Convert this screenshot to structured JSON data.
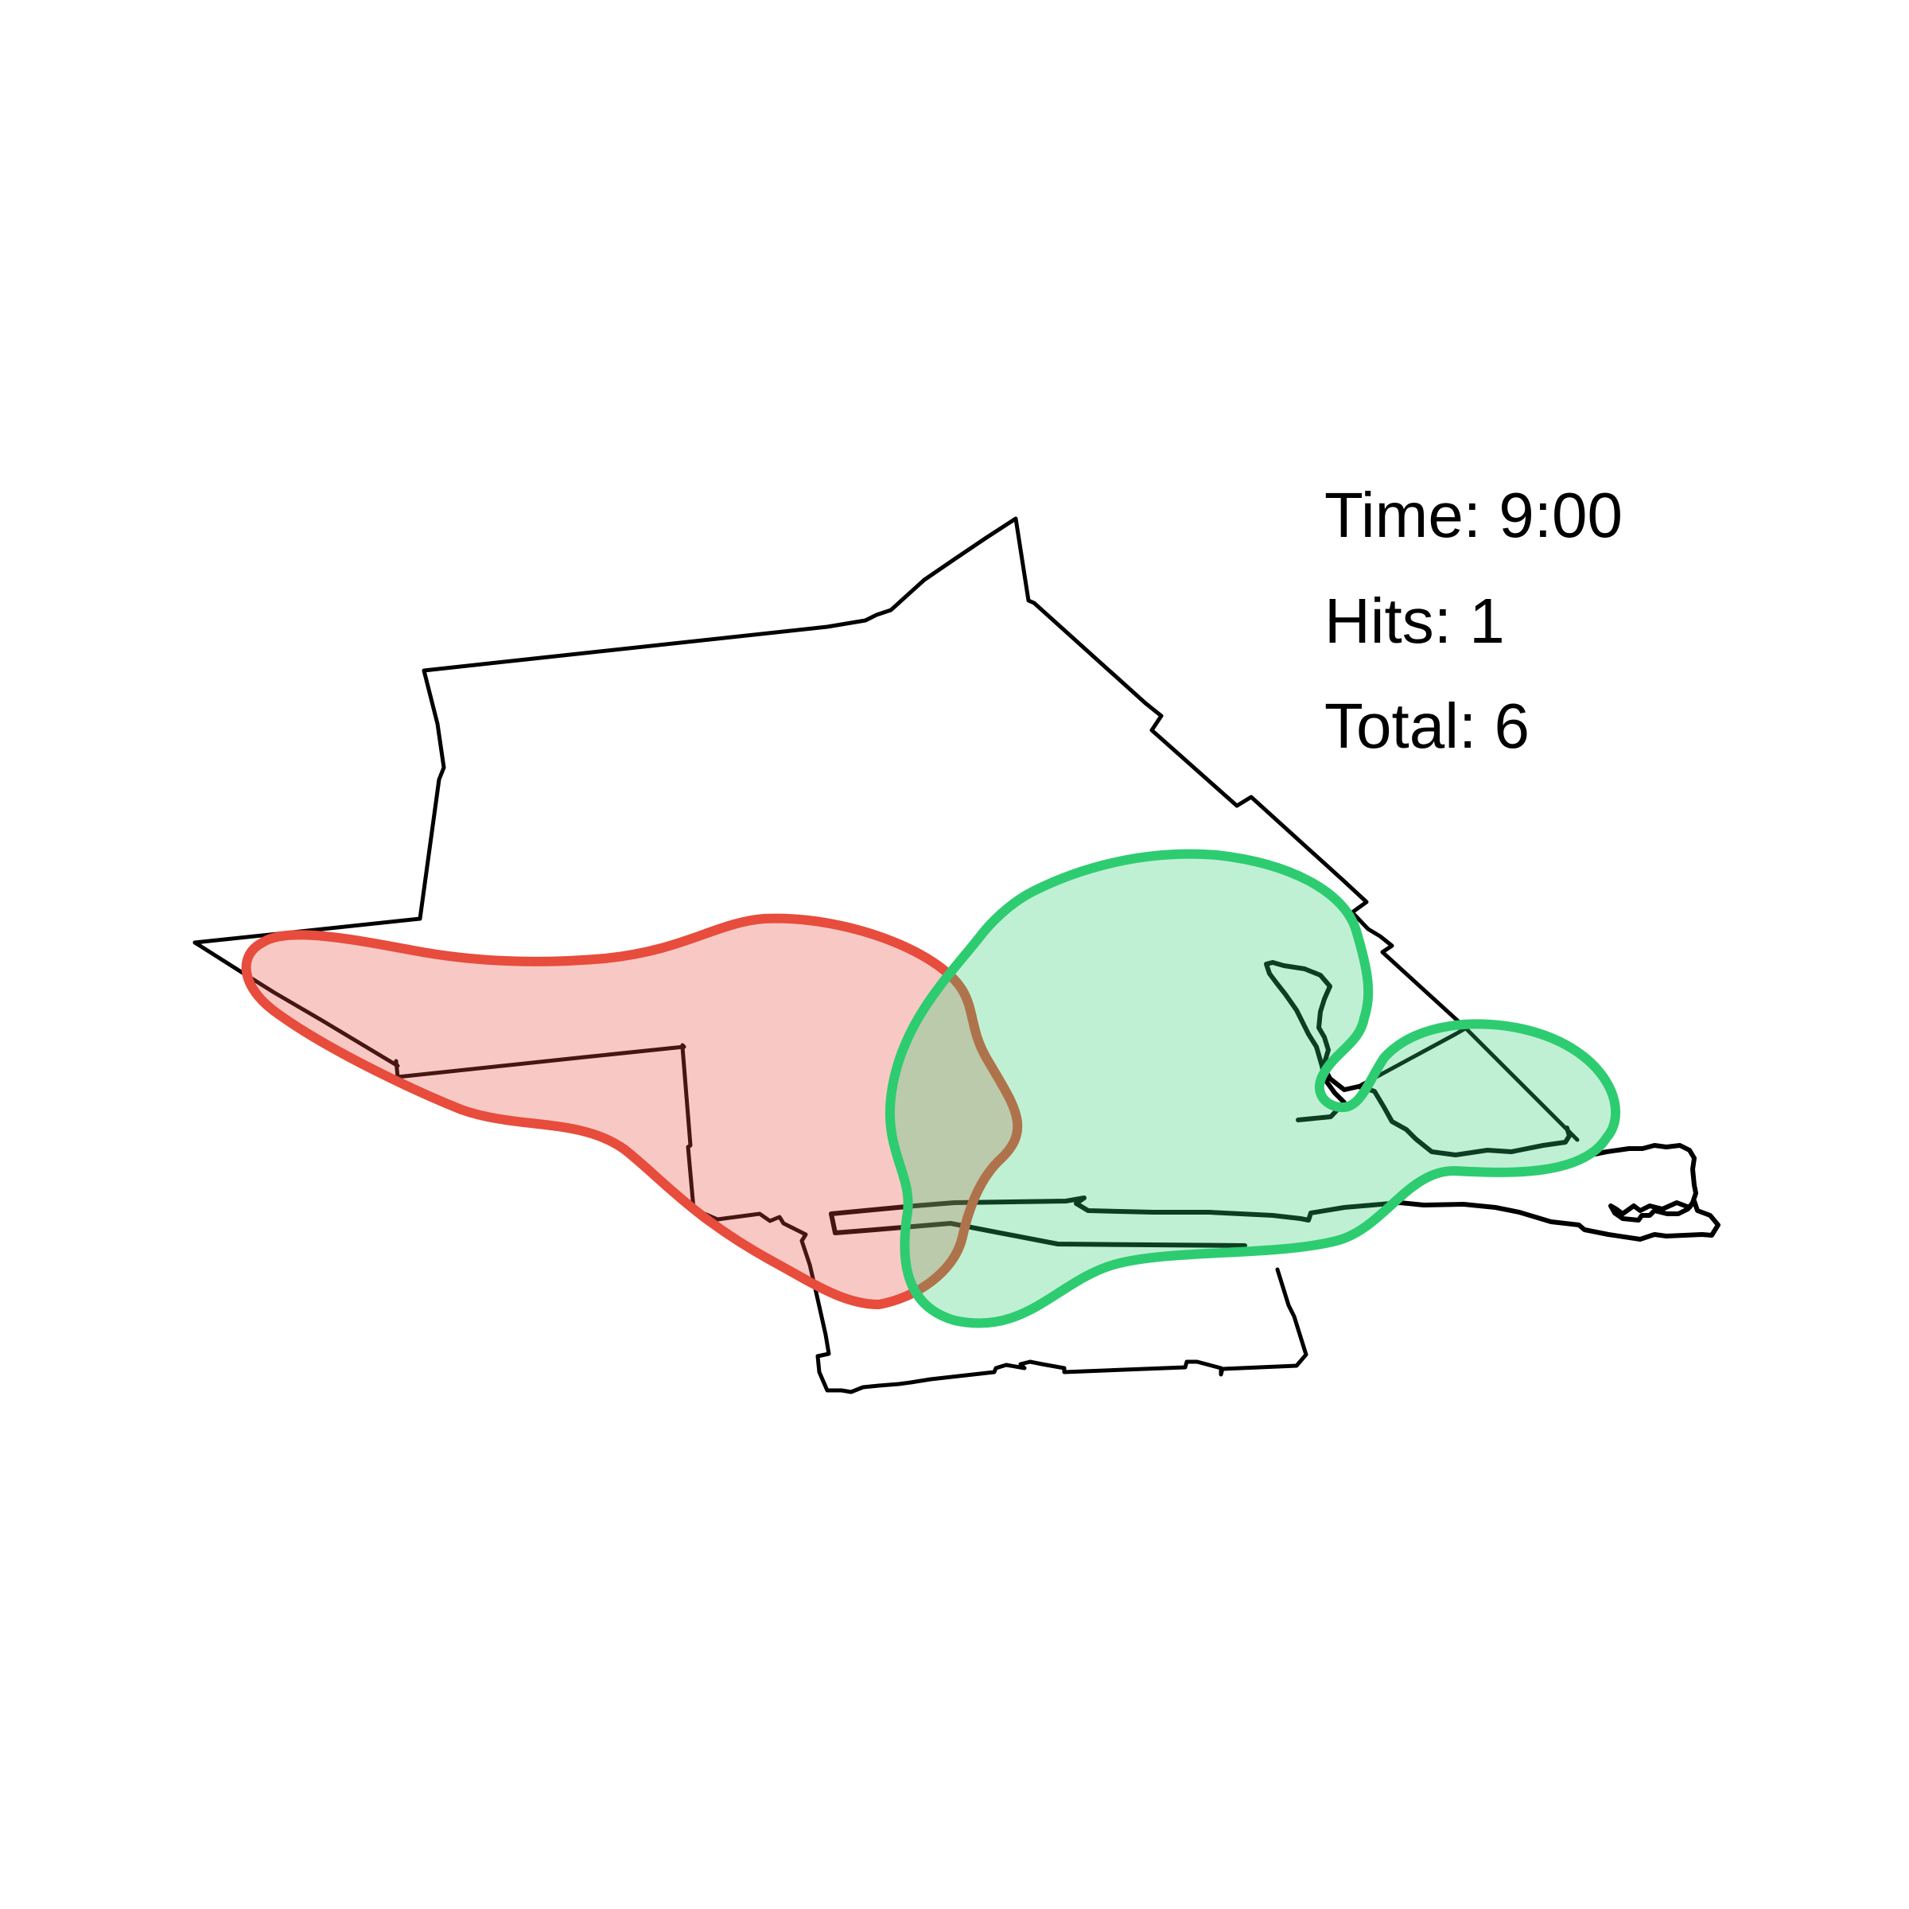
{
  "info": {
    "time_label": "Time: 9:00",
    "hits_label": "Hits: 1",
    "total_label": "Total: 6"
  },
  "zones": [
    {
      "name": "red-zone",
      "stroke": "#e74c3c",
      "fill": "#e74c3c",
      "fill_opacity": 0.3
    },
    {
      "name": "green-zone",
      "stroke": "#2ecc71",
      "fill": "#2ecc71",
      "fill_opacity": 0.3
    }
  ]
}
